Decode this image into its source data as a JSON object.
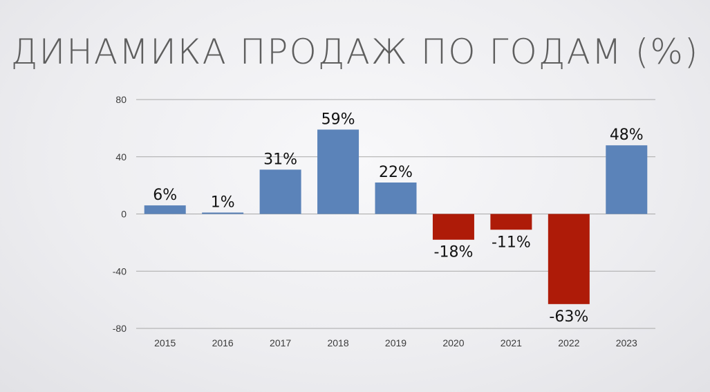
{
  "title": "ДИНАМИКА ПРОДАЖ ПО ГОДАМ (%)",
  "colors": {
    "positive": "#5b83b9",
    "negative": "#ae1b08",
    "gridline": "#a8a8a8",
    "text": "#111111"
  },
  "chart_data": {
    "type": "bar",
    "title": "ДИНАМИКА ПРОДАЖ ПО ГОДАМ (%)",
    "categories": [
      "2015",
      "2016",
      "2017",
      "2018",
      "2019",
      "2020",
      "2021",
      "2022",
      "2023"
    ],
    "values": [
      6,
      1,
      31,
      59,
      22,
      -18,
      -11,
      -63,
      48
    ],
    "data_labels": [
      "6%",
      "1%",
      "31%",
      "59%",
      "22%",
      "-18%",
      "-11%",
      "-63%",
      "48%"
    ],
    "ylim": [
      -80,
      80
    ],
    "yticks": [
      80,
      40,
      0,
      -40,
      -80
    ],
    "ytick_labels": [
      "80",
      "40",
      "0",
      "-40",
      "-80"
    ],
    "grid": true,
    "legend": "none"
  }
}
